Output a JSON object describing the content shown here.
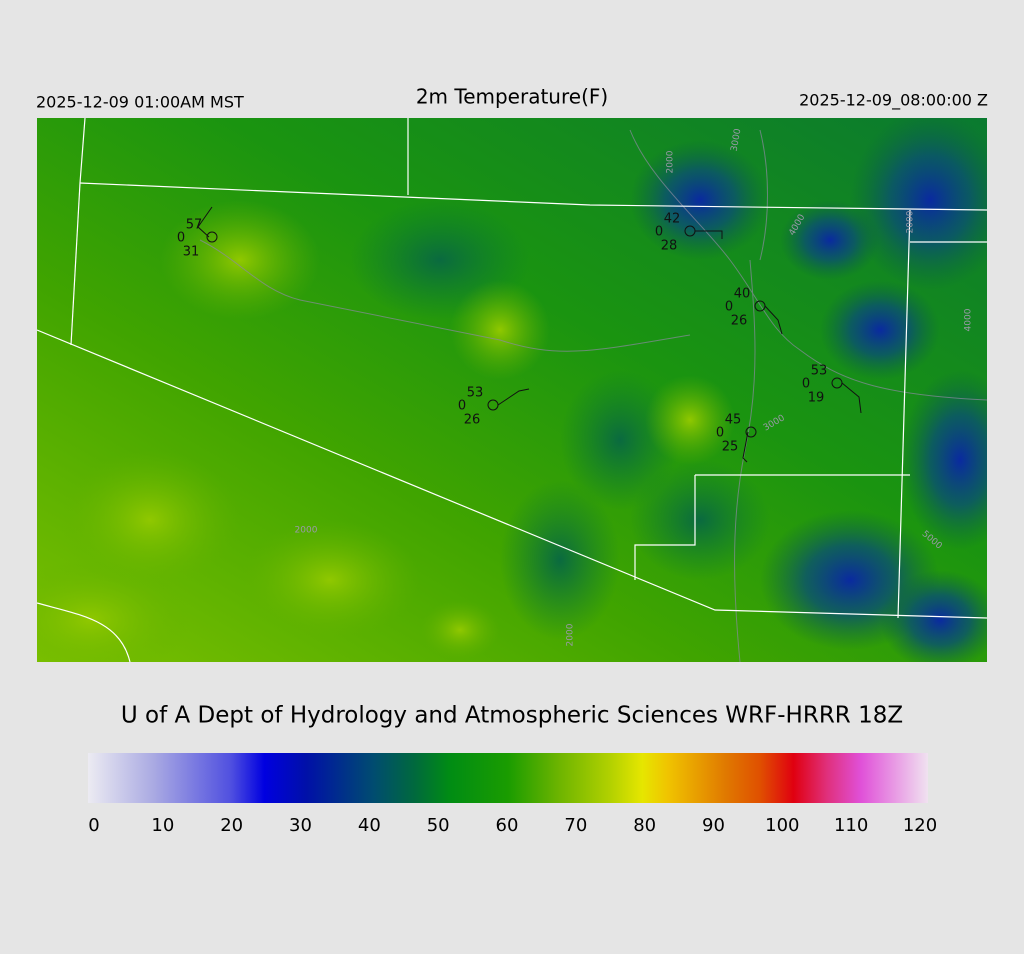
{
  "header": {
    "left": "2025-12-09 01:00AM MST",
    "title": "2m Temperature(F)",
    "right": "2025-12-09_08:00:00 Z"
  },
  "stations": [
    {
      "temp": 57,
      "code": 0,
      "dewpoint": 31
    },
    {
      "temp": 42,
      "code": 0,
      "dewpoint": 28
    },
    {
      "temp": 40,
      "code": 0,
      "dewpoint": 26
    },
    {
      "temp": 53,
      "code": 0,
      "dewpoint": 19
    },
    {
      "temp": 53,
      "code": 0,
      "dewpoint": 26
    },
    {
      "temp": 45,
      "code": 0,
      "dewpoint": 25
    }
  ],
  "contour_labels": [
    "2000",
    "2000",
    "2000",
    "3000",
    "3000",
    "4000",
    "4000",
    "5000",
    "2000"
  ],
  "footer": "U of A Dept of Hydrology and Atmospheric Sciences WRF-HRRR 18Z",
  "colorbar": {
    "lim": [
      0,
      120
    ],
    "ticks": [
      0,
      10,
      20,
      30,
      40,
      50,
      60,
      70,
      80,
      90,
      100,
      110,
      120
    ]
  }
}
